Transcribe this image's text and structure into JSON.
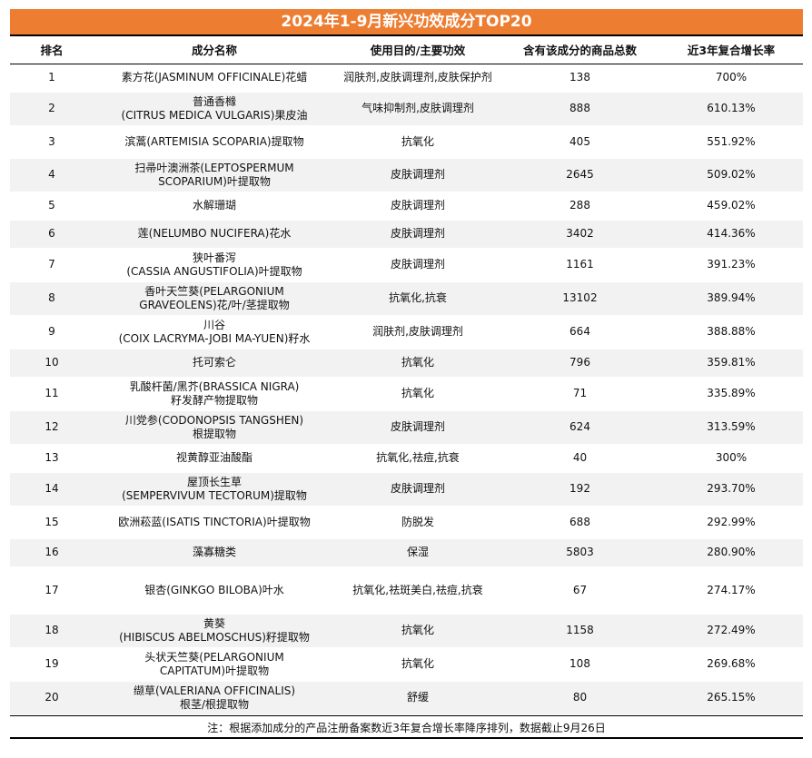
{
  "title": "2024年1-9月新兴功效成分TOP20",
  "headers": [
    "排名",
    "成分名称",
    "使用目的/主要功效",
    "含有该成分的商品总数",
    "近3年复合增长率"
  ],
  "rows": [
    {
      "rank": "1",
      "name": "素方花(JASMINUM OFFICINALE)花蜡",
      "purpose": "润肤剂,皮肤调理剂,皮肤保护剂",
      "count": "138",
      "growth": "700%"
    },
    {
      "rank": "2",
      "name": "普通香橼\n(CITRUS MEDICA VULGARIS)果皮油",
      "purpose": "气味抑制剂,皮肤调理剂",
      "count": "888",
      "growth": "610.13%"
    },
    {
      "rank": "3",
      "name": "滨蒿(ARTEMISIA SCOPARIA)提取物",
      "purpose": "抗氧化",
      "count": "405",
      "growth": "551.92%"
    },
    {
      "rank": "4",
      "name": "扫帚叶澳洲茶(LEPTOSPERMUM\nSCOPARIUM)叶提取物",
      "purpose": "皮肤调理剂",
      "count": "2645",
      "growth": "509.02%"
    },
    {
      "rank": "5",
      "name": "水解珊瑚",
      "purpose": "皮肤调理剂",
      "count": "288",
      "growth": "459.02%"
    },
    {
      "rank": "6",
      "name": "莲(NELUMBO NUCIFERA)花水",
      "purpose": "皮肤调理剂",
      "count": "3402",
      "growth": "414.36%"
    },
    {
      "rank": "7",
      "name": "狭叶番泻\n(CASSIA ANGUSTIFOLIA)叶提取物",
      "purpose": "皮肤调理剂",
      "count": "1161",
      "growth": "391.23%"
    },
    {
      "rank": "8",
      "name": "香叶天竺葵(PELARGONIUM\nGRAVEOLENS)花/叶/茎提取物",
      "purpose": "抗氧化,抗衰",
      "count": "13102",
      "growth": "389.94%"
    },
    {
      "rank": "9",
      "name": "川谷\n(COIX LACRYMA-JOBI MA-YUEN)籽水",
      "purpose": "润肤剂,皮肤调理剂",
      "count": "664",
      "growth": "388.88%"
    },
    {
      "rank": "10",
      "name": "托可索仑",
      "purpose": "抗氧化",
      "count": "796",
      "growth": "359.81%"
    },
    {
      "rank": "11",
      "name": "乳酸杆菌/黑芥(BRASSICA NIGRA)\n籽发酵产物提取物",
      "purpose": "抗氧化",
      "count": "71",
      "growth": "335.89%"
    },
    {
      "rank": "12",
      "name": "川党参(CODONOPSIS TANGSHEN)\n根提取物",
      "purpose": "皮肤调理剂",
      "count": "624",
      "growth": "313.59%"
    },
    {
      "rank": "13",
      "name": "视黄醇亚油酸酯",
      "purpose": "抗氧化,祛痘,抗衰",
      "count": "40",
      "growth": "300%"
    },
    {
      "rank": "14",
      "name": "屋顶长生草\n(SEMPERVIVUM TECTORUM)提取物",
      "purpose": "皮肤调理剂",
      "count": "192",
      "growth": "293.70%"
    },
    {
      "rank": "15",
      "name": "欧洲菘蓝(ISATIS TINCTORIA)叶提取物",
      "purpose": "防脱发",
      "count": "688",
      "growth": "292.99%"
    },
    {
      "rank": "16",
      "name": "藻寡糖类",
      "purpose": "保湿",
      "count": "5803",
      "growth": "280.90%"
    },
    {
      "rank": "17",
      "name": "银杏(GINKGO BILOBA)叶水",
      "purpose": "抗氧化,祛斑美白,祛痘,抗衰",
      "count": "67",
      "growth": "274.17%"
    },
    {
      "rank": "18",
      "name": "黄葵\n(HIBISCUS ABELMOSCHUS)籽提取物",
      "purpose": "抗氧化",
      "count": "1158",
      "growth": "272.49%"
    },
    {
      "rank": "19",
      "name": "头状天竺葵(PELARGONIUM\nCAPITATUM)叶提取物",
      "purpose": "抗氧化",
      "count": "108",
      "growth": "269.68%"
    },
    {
      "rank": "20",
      "name": "缬草(VALERIANA OFFICINALIS)\n根茎/根提取物",
      "purpose": "舒缓",
      "count": "80",
      "growth": "265.15%"
    }
  ],
  "note": "注：根据添加成分的产品注册备案数近3年复合增长率降序排列，数据截止9月26日"
}
